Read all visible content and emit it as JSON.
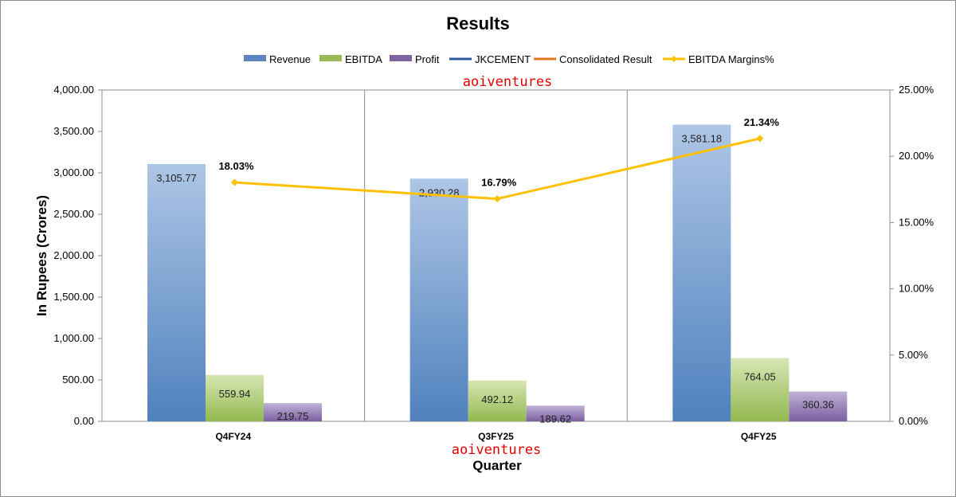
{
  "chart_data": {
    "type": "bar",
    "title": "Results",
    "xlabel": "Quarter",
    "ylabel": "In Rupees (Crores)",
    "categories": [
      "Q4FY24",
      "Q3FY25",
      "Q4FY25"
    ],
    "series": [
      {
        "name": "Revenue",
        "values": [
          3105.77,
          2930.28,
          3581.18
        ],
        "labels": [
          "3,105.77",
          "2,930.28",
          "3,581.18"
        ],
        "color": "#5b86c0"
      },
      {
        "name": "EBITDA",
        "values": [
          559.94,
          492.12,
          764.05
        ],
        "labels": [
          "559.94",
          "492.12",
          "764.05"
        ],
        "color": "#9bbb59"
      },
      {
        "name": "Profit",
        "values": [
          219.75,
          189.62,
          360.36
        ],
        "labels": [
          "219.75",
          "189.62",
          "360.36"
        ],
        "color": "#8064a2"
      }
    ],
    "line_series": [
      {
        "name": "EBITDA Margins%",
        "values": [
          18.03,
          16.79,
          21.34
        ],
        "labels": [
          "18.03%",
          "16.79%",
          "21.34%"
        ],
        "color": "#ffc000",
        "axis": "secondary"
      }
    ],
    "legend_items": [
      {
        "name": "Revenue",
        "kind": "bar",
        "color": "#5b86c0"
      },
      {
        "name": "EBITDA",
        "kind": "bar",
        "color": "#9bbb59"
      },
      {
        "name": "Profit",
        "kind": "bar",
        "color": "#8064a2"
      },
      {
        "name": "JKCEMENT",
        "kind": "line",
        "color": "#2e5b9c"
      },
      {
        "name": "Consolidated Result",
        "kind": "line",
        "color": "#e3741e"
      },
      {
        "name": "EBITDA Margins%",
        "kind": "marker-line",
        "color": "#ffc000"
      }
    ],
    "y_ticks": [
      "0.00",
      "500.00",
      "1,000.00",
      "1,500.00",
      "2,000.00",
      "2,500.00",
      "3,000.00",
      "3,500.00",
      "4,000.00"
    ],
    "y2_ticks": [
      "0.00%",
      "5.00%",
      "10.00%",
      "15.00%",
      "20.00%",
      "25.00%"
    ],
    "ylim": [
      0,
      4000
    ],
    "y2lim": [
      0,
      25
    ],
    "grid": "vertical",
    "legend_position": "top"
  },
  "watermarks": [
    "aoiventures",
    "aoiventures"
  ]
}
